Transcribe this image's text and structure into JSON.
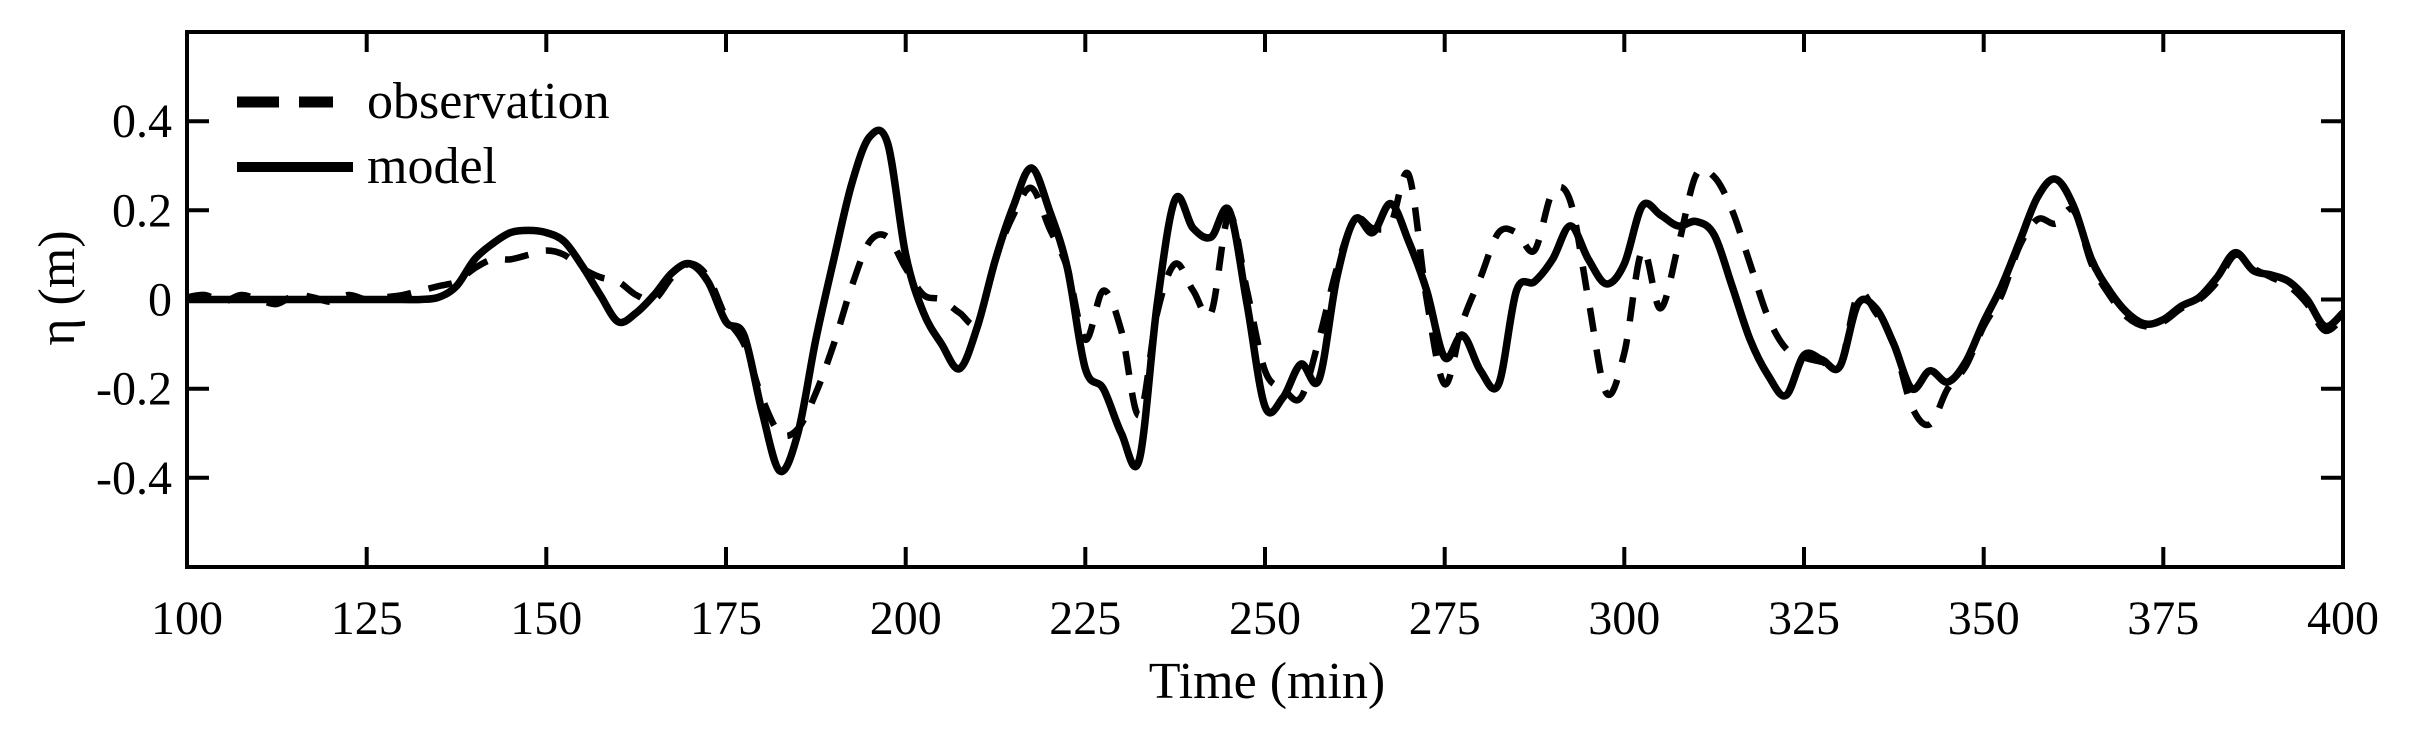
{
  "figure": {
    "background": "#ffffff",
    "line_color": "#000000"
  },
  "chart_data": {
    "type": "line",
    "title": "",
    "xlabel": "Time (min)",
    "ylabel": "η (m)",
    "xlim": [
      100,
      400
    ],
    "ylim": [
      -0.6,
      0.6
    ],
    "x_ticks": [
      100,
      125,
      150,
      175,
      200,
      225,
      250,
      275,
      300,
      325,
      350,
      375,
      400
    ],
    "y_ticks": [
      -0.4,
      -0.2,
      0,
      0.2,
      0.4
    ],
    "y_tick_labels": [
      "-0.4",
      "-0.2",
      "0",
      "0.2",
      "0.4"
    ],
    "grid": false,
    "legend_position": "northwest",
    "x_start": 100,
    "x_step": 2.5,
    "series": [
      {
        "name": "observation",
        "style": "dashed",
        "values": [
          0.005,
          0.01,
          -0.005,
          0.01,
          0,
          -0.01,
          0.01,
          0.005,
          -0.005,
          0.01,
          0,
          0.005,
          0.01,
          0.02,
          0.03,
          0.04,
          0.07,
          0.09,
          0.09,
          0.1,
          0.11,
          0.1,
          0.07,
          0.05,
          0.04,
          0.01,
          0,
          0.05,
          0.08,
          0.05,
          -0.04,
          -0.1,
          -0.22,
          -0.3,
          -0.29,
          -0.21,
          -0.1,
          0.03,
          0.13,
          0.14,
          0.07,
          0.01,
          0,
          -0.03,
          -0.05,
          0.09,
          0.19,
          0.25,
          0.16,
          0.07,
          -0.09,
          0.02,
          -0.07,
          -0.26,
          -0.03,
          0.08,
          0.02,
          -0.03,
          0.19,
          0.02,
          -0.16,
          -0.2,
          -0.22,
          -0.09,
          0.07,
          0.18,
          0.16,
          0.17,
          0.28,
          0,
          -0.19,
          -0.05,
          0.05,
          0.15,
          0.15,
          0.11,
          0.24,
          0.22,
          0,
          -0.21,
          -0.12,
          0.11,
          -0.02,
          0.12,
          0.28,
          0.275,
          0.2,
          0.08,
          -0.04,
          -0.11,
          -0.13,
          -0.14,
          -0.15,
          0.01,
          -0.03,
          -0.1,
          -0.24,
          -0.28,
          -0.2,
          -0.15,
          -0.06,
          0.01,
          0.12,
          0.18,
          0.17,
          0.2,
          0.08,
          0.01,
          -0.04,
          -0.06,
          -0.05,
          -0.02,
          0,
          0.04,
          0.1,
          0.07,
          0.05,
          0.03,
          -0.01,
          -0.07,
          -0.04
        ]
      },
      {
        "name": "model",
        "style": "solid",
        "values": [
          0,
          0,
          0,
          0,
          0,
          0,
          0,
          0,
          0,
          0,
          0,
          0,
          0,
          0,
          0.005,
          0.03,
          0.09,
          0.125,
          0.15,
          0.155,
          0.15,
          0.13,
          0.075,
          0.01,
          -0.05,
          -0.03,
          0.01,
          0.06,
          0.08,
          0.04,
          -0.05,
          -0.08,
          -0.25,
          -0.385,
          -0.3,
          -0.09,
          0.09,
          0.26,
          0.365,
          0.35,
          0.1,
          -0.03,
          -0.1,
          -0.155,
          -0.06,
          0.09,
          0.21,
          0.295,
          0.2,
          0.07,
          -0.155,
          -0.2,
          -0.3,
          -0.36,
          -0.01,
          0.225,
          0.16,
          0.14,
          0.2,
          -0.01,
          -0.24,
          -0.22,
          -0.145,
          -0.18,
          0.05,
          0.18,
          0.15,
          0.215,
          0.13,
          0.02,
          -0.13,
          -0.08,
          -0.16,
          -0.19,
          0.02,
          0.04,
          0.09,
          0.165,
          0.09,
          0.035,
          0.08,
          0.21,
          0.19,
          0.165,
          0.175,
          0.145,
          0.03,
          -0.09,
          -0.17,
          -0.215,
          -0.125,
          -0.135,
          -0.15,
          -0.01,
          -0.02,
          -0.1,
          -0.2,
          -0.16,
          -0.185,
          -0.14,
          -0.05,
          0.03,
          0.13,
          0.23,
          0.27,
          0.21,
          0.09,
          0.02,
          -0.03,
          -0.055,
          -0.045,
          -0.015,
          0.005,
          0.05,
          0.105,
          0.065,
          0.055,
          0.04,
          0,
          -0.06,
          -0.03
        ]
      }
    ]
  }
}
